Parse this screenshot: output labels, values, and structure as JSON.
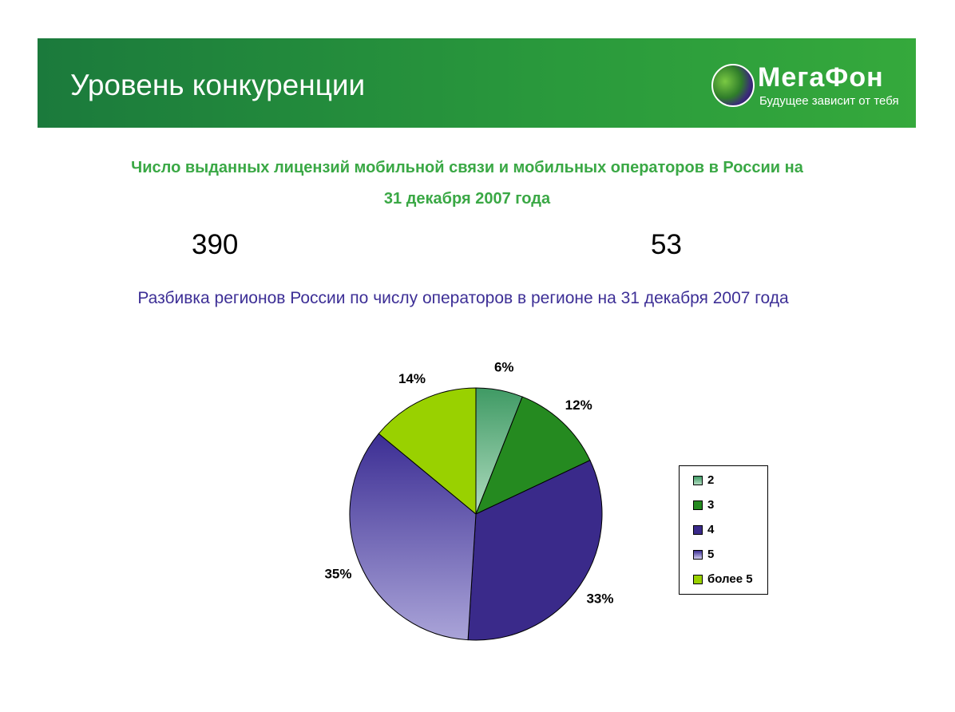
{
  "header": {
    "title": "Уровень конкуренции",
    "logo_name": "МегаФон",
    "logo_tagline": "Будущее зависит от тебя"
  },
  "subtitle": {
    "line1": "Число выданных лицензий мобильной связи и мобильных операторов в России на",
    "line2": "31 декабря 2007 года"
  },
  "stats": {
    "licenses": "390",
    "operators": "53"
  },
  "chart_data": {
    "type": "pie",
    "title": "Разбивка регионов России по числу операторов в регионе на 31 декабря 2007 года",
    "categories": [
      "2",
      "3",
      "4",
      "5",
      "более 5"
    ],
    "values": [
      6,
      12,
      33,
      35,
      14
    ],
    "labels": [
      "6%",
      "12%",
      "33%",
      "35%",
      "14%"
    ],
    "colors": [
      "#5aa878",
      "#258a20",
      "#3a2a8a",
      "#8a84c4",
      "#99d100"
    ],
    "legend_placement": "right"
  }
}
